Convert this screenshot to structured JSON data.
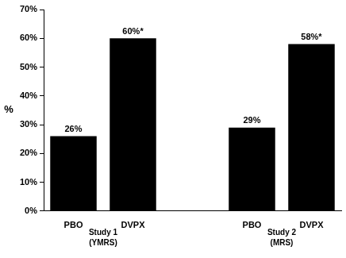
{
  "chart_data": {
    "type": "bar",
    "y_label": "%",
    "ylim": [
      0,
      70
    ],
    "yticks": [
      {
        "value": 0,
        "label": "0%"
      },
      {
        "value": 10,
        "label": "10%"
      },
      {
        "value": 20,
        "label": "20%"
      },
      {
        "value": 30,
        "label": "30%"
      },
      {
        "value": 40,
        "label": "40%"
      },
      {
        "value": 50,
        "label": "50%"
      },
      {
        "value": 60,
        "label": "60%"
      },
      {
        "value": 70,
        "label": "70%"
      }
    ],
    "color": "#000000",
    "grid": false,
    "data_labels": true,
    "groups": [
      {
        "title": [
          "Study 1",
          "(YMRS)"
        ],
        "categories": [
          "PBO",
          "DVPX"
        ],
        "values": [
          26,
          60
        ],
        "value_labels": [
          "26%",
          "60%*"
        ]
      },
      {
        "title": [
          "Study 2",
          "(MRS)"
        ],
        "categories": [
          "PBO",
          "DVPX"
        ],
        "values": [
          29,
          58
        ],
        "value_labels": [
          "29%",
          "58%*"
        ]
      }
    ]
  }
}
